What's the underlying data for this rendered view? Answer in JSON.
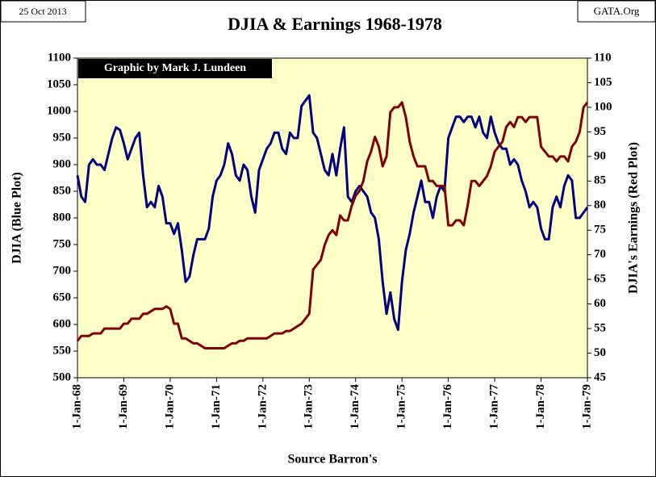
{
  "chart_data": {
    "type": "line",
    "title": "DJIA & Earnings 1968-1978",
    "date_note": "25 Oct 2013",
    "source_site": "GATA.Org",
    "credit": "Graphic by Mark J. Lundeen",
    "ylabel": "DJIA  (Blue Plot)",
    "y2label": "DJIA's Earnings  (Red Plot)",
    "xlabel": "Source Barron's",
    "background": "#ffffc8",
    "x": [
      "1968-01",
      "1968-02",
      "1968-03",
      "1968-04",
      "1968-05",
      "1968-06",
      "1968-07",
      "1968-08",
      "1968-09",
      "1968-10",
      "1968-11",
      "1968-12",
      "1969-01",
      "1969-02",
      "1969-03",
      "1969-04",
      "1969-05",
      "1969-06",
      "1969-07",
      "1969-08",
      "1969-09",
      "1969-10",
      "1969-11",
      "1969-12",
      "1970-01",
      "1970-02",
      "1970-03",
      "1970-04",
      "1970-05",
      "1970-06",
      "1970-07",
      "1970-08",
      "1970-09",
      "1970-10",
      "1970-11",
      "1970-12",
      "1971-01",
      "1971-02",
      "1971-03",
      "1971-04",
      "1971-05",
      "1971-06",
      "1971-07",
      "1971-08",
      "1971-09",
      "1971-10",
      "1971-11",
      "1971-12",
      "1972-01",
      "1972-02",
      "1972-03",
      "1972-04",
      "1972-05",
      "1972-06",
      "1972-07",
      "1972-08",
      "1972-09",
      "1972-10",
      "1972-11",
      "1972-12",
      "1973-01",
      "1973-02",
      "1973-03",
      "1973-04",
      "1973-05",
      "1973-06",
      "1973-07",
      "1973-08",
      "1973-09",
      "1973-10",
      "1973-11",
      "1973-12",
      "1974-01",
      "1974-02",
      "1974-03",
      "1974-04",
      "1974-05",
      "1974-06",
      "1974-07",
      "1974-08",
      "1974-09",
      "1974-10",
      "1974-11",
      "1974-12",
      "1975-01",
      "1975-02",
      "1975-03",
      "1975-04",
      "1975-05",
      "1975-06",
      "1975-07",
      "1975-08",
      "1975-09",
      "1975-10",
      "1975-11",
      "1975-12",
      "1976-01",
      "1976-02",
      "1976-03",
      "1976-04",
      "1976-05",
      "1976-06",
      "1976-07",
      "1976-08",
      "1976-09",
      "1976-10",
      "1976-11",
      "1976-12",
      "1977-01",
      "1977-02",
      "1977-03",
      "1977-04",
      "1977-05",
      "1977-06",
      "1977-07",
      "1977-08",
      "1977-09",
      "1977-10",
      "1977-11",
      "1977-12",
      "1978-01",
      "1978-02",
      "1978-03",
      "1978-04",
      "1978-05",
      "1978-06",
      "1978-07",
      "1978-08",
      "1978-09",
      "1978-10",
      "1978-11",
      "1978-12",
      "1979-01"
    ],
    "xlim": [
      "1968-01",
      "1979-01"
    ],
    "xticks": [
      {
        "value": "1968-01",
        "label": "1-Jan-68"
      },
      {
        "value": "1969-01",
        "label": "1-Jan-69"
      },
      {
        "value": "1970-01",
        "label": "1-Jan-70"
      },
      {
        "value": "1971-01",
        "label": "1-Jan-71"
      },
      {
        "value": "1972-01",
        "label": "1-Jan-72"
      },
      {
        "value": "1973-01",
        "label": "1-Jan-73"
      },
      {
        "value": "1974-01",
        "label": "1-Jan-74"
      },
      {
        "value": "1975-01",
        "label": "1-Jan-75"
      },
      {
        "value": "1976-01",
        "label": "1-Jan-76"
      },
      {
        "value": "1977-01",
        "label": "1-Jan-77"
      },
      {
        "value": "1978-01",
        "label": "1-Jan-78"
      },
      {
        "value": "1979-01",
        "label": "1-Jan-79"
      }
    ],
    "ylim": [
      500,
      1100
    ],
    "yticks": [
      500,
      550,
      600,
      650,
      700,
      750,
      800,
      850,
      900,
      950,
      1000,
      1050,
      1100
    ],
    "y2lim": [
      45,
      110
    ],
    "y2ticks": [
      45,
      50,
      55,
      60,
      65,
      70,
      75,
      80,
      85,
      90,
      95,
      100,
      105,
      110
    ],
    "series": [
      {
        "name": "DJIA",
        "color": "#000080",
        "values": [
          880,
          840,
          830,
          900,
          910,
          900,
          900,
          890,
          920,
          950,
          970,
          965,
          940,
          910,
          930,
          950,
          960,
          880,
          820,
          830,
          820,
          860,
          840,
          790,
          790,
          770,
          790,
          740,
          680,
          690,
          730,
          760,
          760,
          760,
          780,
          840,
          870,
          880,
          900,
          940,
          920,
          880,
          870,
          900,
          890,
          840,
          810,
          890,
          910,
          930,
          940,
          960,
          960,
          930,
          920,
          960,
          950,
          950,
          1010,
          1020,
          1030,
          960,
          950,
          920,
          890,
          880,
          920,
          880,
          930,
          970,
          840,
          830,
          850,
          860,
          850,
          840,
          810,
          800,
          760,
          680,
          620,
          660,
          610,
          590,
          680,
          740,
          770,
          810,
          840,
          870,
          830,
          830,
          800,
          840,
          860,
          850,
          950,
          970,
          990,
          990,
          980,
          990,
          990,
          970,
          990,
          960,
          950,
          990,
          960,
          940,
          930,
          930,
          900,
          910,
          900,
          870,
          850,
          820,
          830,
          820,
          780,
          760,
          760,
          820,
          840,
          820,
          860,
          880,
          870,
          800,
          800,
          810,
          820
        ]
      },
      {
        "name": "Earnings",
        "color": "#800000",
        "axis": "y2",
        "values": [
          52.5,
          53.5,
          53.5,
          53.5,
          54,
          54,
          54,
          55,
          55,
          55,
          55,
          55,
          56,
          56,
          57,
          57,
          57,
          58,
          58,
          58.5,
          59,
          59,
          59,
          59.5,
          59,
          56,
          56,
          53,
          53,
          52.5,
          52,
          52,
          51.5,
          51,
          51,
          51,
          51,
          51,
          51,
          51.5,
          52,
          52,
          52.5,
          52.5,
          53,
          53,
          53,
          53,
          53,
          53,
          53.5,
          54,
          54,
          54,
          54.5,
          54.5,
          55,
          55.5,
          56,
          57,
          58,
          67,
          68,
          69,
          72,
          74,
          75,
          74,
          78,
          77,
          77,
          80,
          82,
          83,
          85,
          89,
          91,
          94,
          92,
          88,
          90,
          99,
          100,
          100,
          101,
          98,
          93,
          90,
          88,
          88,
          88,
          85,
          85,
          84,
          84,
          84,
          76,
          76,
          77,
          77,
          76,
          80,
          85,
          85,
          84,
          85,
          86,
          88,
          91,
          92,
          93,
          96,
          97,
          96,
          98,
          98,
          97,
          98,
          98,
          98,
          92,
          91,
          90,
          90,
          89,
          90,
          90,
          89,
          92,
          93,
          95,
          100,
          101
        ]
      }
    ]
  }
}
